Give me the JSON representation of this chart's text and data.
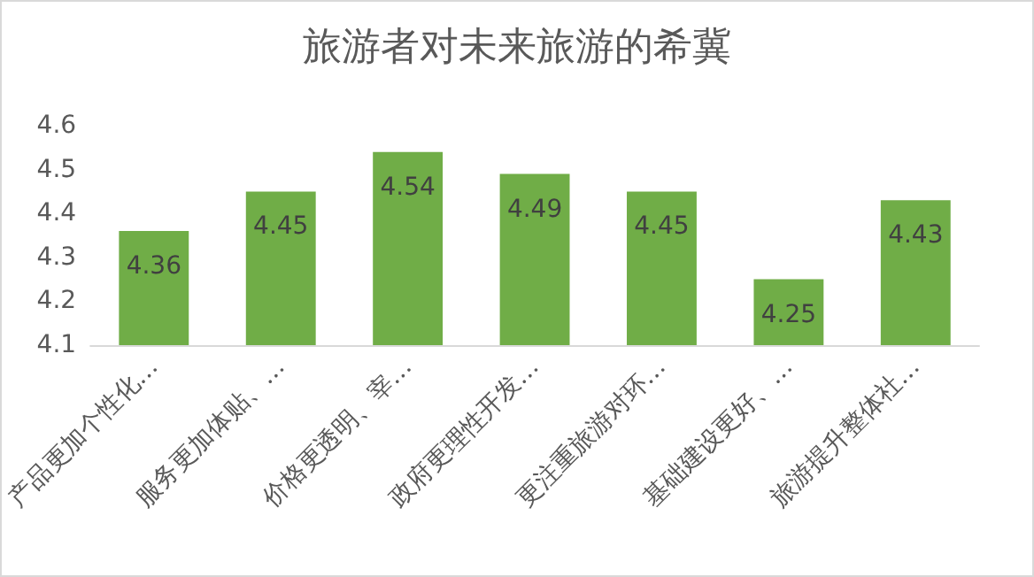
{
  "chart_data": {
    "type": "bar",
    "title": "旅游者对未来旅游的希冀",
    "categories": [
      "产品更加个性化…",
      "服务更加体贴、…",
      "价格更透明、宰…",
      "政府更理性开发…",
      "更注重旅游对环…",
      "基础建设更好、…",
      "旅游提升整体社…"
    ],
    "values": [
      4.36,
      4.45,
      4.54,
      4.49,
      4.45,
      4.25,
      4.43
    ],
    "color": "#70ad47",
    "ylim": [
      4.1,
      4.6
    ],
    "yticks": [
      4.1,
      4.2,
      4.3,
      4.4,
      4.5,
      4.6
    ],
    "data_labels": true
  }
}
